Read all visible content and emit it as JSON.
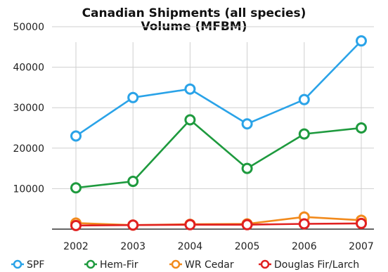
{
  "chart_data": {
    "type": "line",
    "title": "Canadian Shipments (all species)",
    "subtitle": "Volume (MFBM)",
    "xlabel": "",
    "ylabel": "",
    "x": [
      "2002",
      "2003",
      "2004",
      "2005",
      "2006",
      "2007"
    ],
    "y_ticks": [
      10000,
      20000,
      30000,
      40000,
      50000
    ],
    "ylim": [
      0,
      50000
    ],
    "grid": true,
    "legend_position": "bottom",
    "series": [
      {
        "name": "SPF",
        "color": "#2aa3e8",
        "values": [
          23000,
          32500,
          34600,
          26000,
          32000,
          46500
        ]
      },
      {
        "name": "Hem-Fir",
        "color": "#1e9a3e",
        "values": [
          10200,
          11800,
          27000,
          15000,
          23500,
          25000
        ]
      },
      {
        "name": "WR Cedar",
        "color": "#f28a1c",
        "values": [
          1500,
          1000,
          1200,
          1300,
          3000,
          2200
        ]
      },
      {
        "name": "Douglas Fir/Larch",
        "color": "#e02020",
        "values": [
          900,
          1000,
          1100,
          1100,
          1300,
          1400
        ]
      }
    ]
  }
}
